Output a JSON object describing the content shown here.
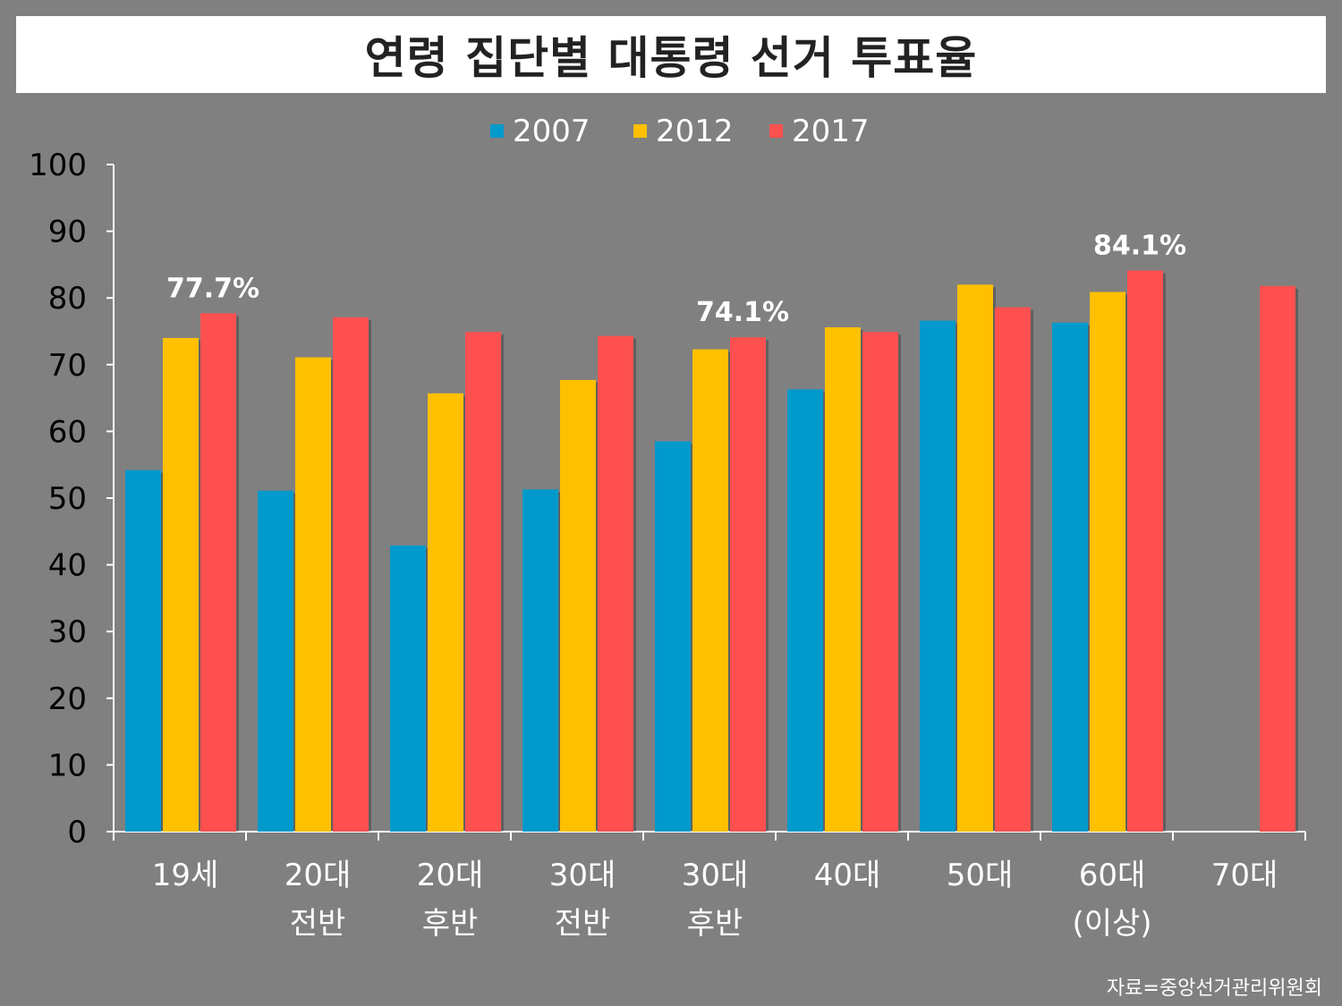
{
  "title": "연령 집단별 대통령 선거 투표율",
  "source": "자료=중앙선거관리위원회",
  "colors": {
    "2007": "#0099cc",
    "2012": "#ffc000",
    "2017": "#ff5050",
    "background": "#808080"
  },
  "chart_data": {
    "type": "bar",
    "title": "연령 집단별 대통령 선거 투표율",
    "categories": [
      [
        "19세"
      ],
      [
        "20대",
        "전반"
      ],
      [
        "20대",
        "후반"
      ],
      [
        "30대",
        "전반"
      ],
      [
        "30대",
        "후반"
      ],
      [
        "40대"
      ],
      [
        "50대"
      ],
      [
        "60대",
        "(이상)"
      ],
      [
        "70대"
      ]
    ],
    "series": [
      {
        "name": "2007",
        "color": "#0099cc",
        "values": [
          54.2,
          51.1,
          42.9,
          51.3,
          58.5,
          66.3,
          76.6,
          76.3,
          null
        ]
      },
      {
        "name": "2012",
        "color": "#ffc000",
        "values": [
          74.0,
          71.1,
          65.7,
          67.7,
          72.3,
          75.6,
          82.0,
          80.9,
          null
        ]
      },
      {
        "name": "2017",
        "color": "#ff5050",
        "values": [
          77.7,
          77.1,
          74.9,
          74.3,
          74.1,
          74.9,
          78.6,
          84.1,
          81.8
        ]
      }
    ],
    "annotations": [
      {
        "category_index": 0,
        "series": "2017",
        "text": "77.7%"
      },
      {
        "category_index": 4,
        "series": "2017",
        "text": "74.1%"
      },
      {
        "category_index": 7,
        "series": "2017",
        "text": "84.1%"
      }
    ],
    "ylim": [
      0,
      100
    ],
    "yticks": [
      0,
      10,
      20,
      30,
      40,
      50,
      60,
      70,
      80,
      90,
      100
    ],
    "xlabel": "",
    "ylabel": "",
    "legend": "top-center",
    "grid": false
  }
}
